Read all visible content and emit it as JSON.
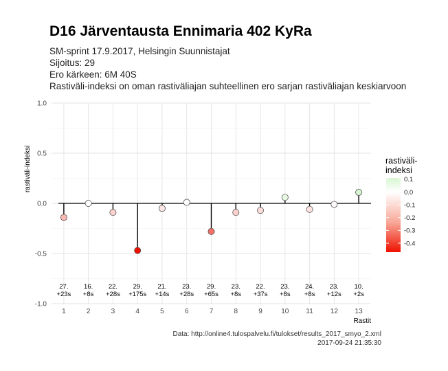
{
  "header": {
    "title": "D16 Järventausta Ennimaria 402 KyRa",
    "subtitle_lines": [
      "SM-sprint 17.9.2017, Helsingin Suunnistajat",
      "Sijoitus: 29",
      "Ero kärkeen: 6M 40S",
      "Rastiväli-indeksi on oman rastiväliajan suhteellinen ero sarjan rastiväliajan keskiarvoon"
    ]
  },
  "caption": {
    "source": "Data: http://online4.tulospalvelu.fi/tulokset/results_2017_smyo_2.xml",
    "timestamp": "2017-09-24 21:35:30"
  },
  "chart_data": {
    "type": "scatter",
    "x": [
      1,
      2,
      3,
      4,
      5,
      6,
      7,
      8,
      9,
      10,
      11,
      12,
      13
    ],
    "y": [
      -0.14,
      0.0,
      -0.09,
      -0.47,
      -0.05,
      0.01,
      -0.28,
      -0.09,
      -0.07,
      0.06,
      -0.06,
      -0.01,
      0.11
    ],
    "point_labels": [
      [
        "27.",
        "+23s"
      ],
      [
        "16.",
        "+8s"
      ],
      [
        "22.",
        "+28s"
      ],
      [
        "29.",
        "+175s"
      ],
      [
        "21.",
        "+14s"
      ],
      [
        "23.",
        "+28s"
      ],
      [
        "29.",
        "+65s"
      ],
      [
        "23.",
        "+8s"
      ],
      [
        "22.",
        "+37s"
      ],
      [
        "23.",
        "+8s"
      ],
      [
        "24.",
        "+8s"
      ],
      [
        "23.",
        "+12s"
      ],
      [
        "10.",
        "+2s"
      ]
    ],
    "xlabel": "Rastit",
    "ylabel": "rastiväli-indeksi",
    "xlim": [
      0.5,
      13.5
    ],
    "ylim": [
      -1.0,
      1.0
    ],
    "y_ticks": [
      1.0,
      0.5,
      0.0,
      -0.5,
      -1.0
    ],
    "y_tick_labels": [
      "1.0",
      "0.5",
      "0.0",
      "-0.5",
      "-1.0"
    ],
    "x_ticks": [
      1,
      2,
      3,
      4,
      5,
      6,
      7,
      8,
      9,
      10,
      11,
      12,
      13
    ],
    "baseline": 0,
    "grid": true,
    "legend": {
      "title": [
        "rastiväli-",
        "indeksi"
      ],
      "placement": "right",
      "ticks": [
        0.1,
        0.0,
        -0.1,
        -0.2,
        -0.3,
        -0.4
      ],
      "tick_labels": [
        "0.1",
        "0.0",
        "-0.1",
        "-0.2",
        "-0.3",
        "-0.4"
      ],
      "range": [
        -0.47,
        0.11
      ]
    },
    "colors": {
      "positive": "#d6f5d0",
      "zero": "#ffffff",
      "negative": "#ee1100",
      "baseline": "#000000",
      "grid": "#e3e3e3"
    }
  }
}
